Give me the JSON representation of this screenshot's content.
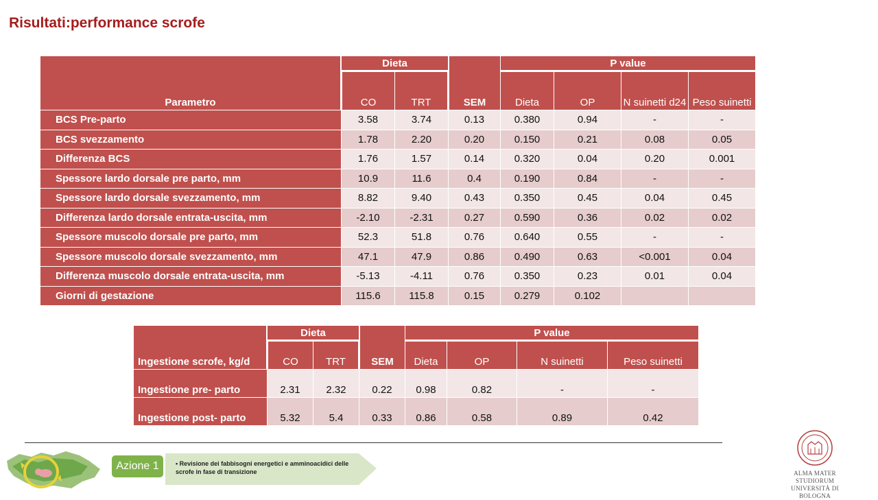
{
  "title": "Risultati:performance scrofe",
  "table1": {
    "group_dieta": "Dieta",
    "group_pvalue": "P value",
    "param_header": "Parametro",
    "sem_header": "SEM",
    "sub_headers": [
      "CO",
      "TRT",
      "Dieta",
      "OP",
      "N suinetti d24",
      "Peso suinetti"
    ],
    "rows": [
      {
        "label": "BCS Pre-parto",
        "co": "3.58",
        "trt": "3.74",
        "sem": "0.13",
        "dieta": "0.380",
        "op": "0.94",
        "n": "-",
        "peso": "-"
      },
      {
        "label": "BCS svezzamento",
        "co": "1.78",
        "trt": "2.20",
        "sem": "0.20",
        "dieta": "0.150",
        "op": "0.21",
        "n": "0.08",
        "peso": "0.05"
      },
      {
        "label": "Differenza BCS",
        "co": "1.76",
        "trt": "1.57",
        "sem": "0.14",
        "dieta": "0.320",
        "op": "0.04",
        "n": "0.20",
        "peso": "0.001"
      },
      {
        "label": "Spessore lardo dorsale pre parto, mm",
        "co": "10.9",
        "trt": "11.6",
        "sem": "0.4",
        "dieta": "0.190",
        "op": "0.84",
        "n": "-",
        "peso": "-"
      },
      {
        "label": "Spessore lardo dorsale svezzamento, mm",
        "co": "8.82",
        "trt": "9.40",
        "sem": "0.43",
        "dieta": "0.350",
        "op": "0.45",
        "n": "0.04",
        "peso": "0.45"
      },
      {
        "label": "Differenza lardo dorsale entrata-uscita, mm",
        "co": "-2.10",
        "trt": "-2.31",
        "sem": "0.27",
        "dieta": "0.590",
        "op": "0.36",
        "n": "0.02",
        "peso": "0.02"
      },
      {
        "label": "Spessore muscolo dorsale pre parto, mm",
        "co": "52.3",
        "trt": "51.8",
        "sem": "0.76",
        "dieta": "0.640",
        "op": "0.55",
        "n": "-",
        "peso": "-"
      },
      {
        "label": "Spessore muscolo dorsale svezzamento, mm",
        "co": "47.1",
        "trt": "47.9",
        "sem": "0.86",
        "dieta": "0.490",
        "op": "0.63",
        "n": "<0.001",
        "peso": "0.04"
      },
      {
        "label": "Differenza muscolo dorsale entrata-uscita, mm",
        "co": "-5.13",
        "trt": "-4.11",
        "sem": "0.76",
        "dieta": "0.350",
        "op": "0.23",
        "n": "0.01",
        "peso": "0.04"
      },
      {
        "label": "Giorni di gestazione",
        "co": "115.6",
        "trt": "115.8",
        "sem": "0.15",
        "dieta": "0.279",
        "op": "0.102",
        "n": "",
        "peso": ""
      }
    ]
  },
  "table2": {
    "group_dieta": "Dieta",
    "group_pvalue": "P value",
    "param_header": "Ingestione scrofe, kg/d",
    "sem_header": "SEM",
    "sub_headers": [
      "CO",
      "TRT",
      "Dieta",
      "OP",
      "N suinetti",
      "Peso suinetti"
    ],
    "rows": [
      {
        "label": "Ingestione pre- parto",
        "co": "2.31",
        "trt": "2.32",
        "sem": "0.22",
        "dieta": "0.98",
        "op": "0.82",
        "n": "-",
        "peso": "-"
      },
      {
        "label": "Ingestione post- parto",
        "co": "5.32",
        "trt": "5.4",
        "sem": "0.33",
        "dieta": "0.86",
        "op": "0.58",
        "n": "0.89",
        "peso": "0.42"
      }
    ]
  },
  "footer": {
    "azione_label": "Azione 1",
    "azione_text": "Revisione dei fabbisogni energetici e amminoacidici delle scrofe in fase di transizione",
    "unibo_line1": "ALMA MATER STUDIORUM",
    "unibo_line2": "UNIVERSITÀ DI BOLOGNA",
    "colors": {
      "header_red": "#c0504d",
      "title_red": "#a51c1c",
      "row_light": "#f2e6e6",
      "row_dark": "#e6cccc",
      "azione_green": "#7fb34a"
    }
  }
}
